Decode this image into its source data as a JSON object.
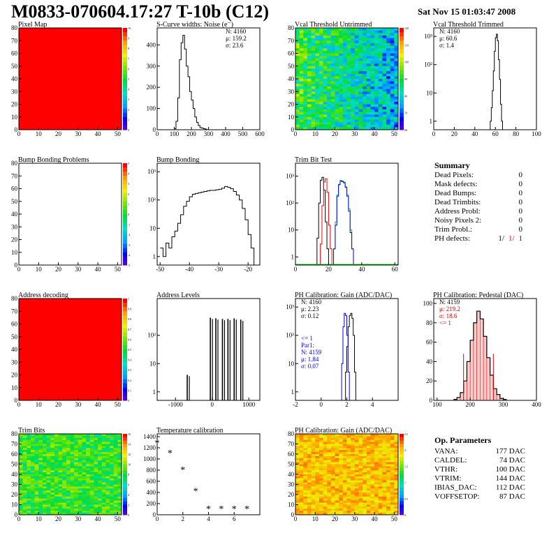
{
  "title": "M0833-070604.17:27 T-10b (C12)",
  "date": "Sat Nov 15 01:03:47 2008",
  "colors": {
    "map_red": "#ff0000",
    "trim_red": "#ff0000",
    "trim_green": "#00cc00",
    "trim_blue": "#0000ff",
    "blue_fit": "#0000ee"
  },
  "summary": {
    "title": "Summary",
    "rows": [
      {
        "label": "Dead Pixels:",
        "value": "0"
      },
      {
        "label": "Mask defects:",
        "value": "0"
      },
      {
        "label": "Dead Bumps:",
        "value": "0"
      },
      {
        "label": "Dead Trimbits:",
        "value": "0"
      },
      {
        "label": "Address Probl:",
        "value": "0"
      },
      {
        "label": "Noisy Pixels 2:",
        "value": "0"
      },
      {
        "label": "Trim Probl.:",
        "value": "0"
      }
    ],
    "ph_label": "PH defects:",
    "ph_values": [
      "1/",
      "1/",
      "1"
    ]
  },
  "op_params": {
    "title": "Op. Parameters",
    "rows": [
      {
        "label": "VANA:",
        "value": "177 DAC"
      },
      {
        "label": "CALDEL:",
        "value": "74 DAC"
      },
      {
        "label": "VTHR:",
        "value": "100 DAC"
      },
      {
        "label": "VTRIM:",
        "value": "144 DAC"
      },
      {
        "label": "IBIAS_DAC:",
        "value": "112 DAC"
      },
      {
        "label": "VOFFSETOP:",
        "value": "87 DAC"
      }
    ]
  },
  "chart_data": [
    {
      "id": "pixel-map",
      "type": "heatmap",
      "title": "Pixel Map",
      "xticks": [
        0,
        10,
        20,
        30,
        40,
        50
      ],
      "yticks": [
        0,
        10,
        20,
        30,
        40,
        50,
        60,
        70,
        80
      ],
      "xlim": [
        0,
        52
      ],
      "ylim": [
        0,
        80
      ],
      "fill": "uniform-red",
      "zscale": [
        "0",
        "1",
        "2",
        "3",
        "4",
        "5",
        "6",
        "7",
        "8",
        "9",
        "10"
      ]
    },
    {
      "id": "scurve",
      "type": "bar",
      "title": "S-Curve widths: Noise (e⁻)",
      "xticks": [
        0,
        100,
        200,
        300,
        400,
        500,
        600
      ],
      "yticks": [
        0,
        100,
        200,
        300,
        400
      ],
      "xlim": [
        0,
        600
      ],
      "ylim": [
        0,
        480
      ],
      "stats": [
        "N: 4160",
        "μ: 159.2",
        "σ: 23.6"
      ],
      "x": [
        90,
        100,
        110,
        120,
        130,
        140,
        150,
        160,
        170,
        180,
        190,
        200,
        210,
        220,
        230,
        240,
        250,
        260,
        270,
        280,
        290
      ],
      "values": [
        0,
        5,
        40,
        150,
        330,
        410,
        445,
        380,
        300,
        250,
        180,
        140,
        100,
        60,
        35,
        20,
        10,
        8,
        5,
        3,
        0
      ]
    },
    {
      "id": "vcal-untrimmed",
      "type": "heatmap",
      "title": "Vcal Threshold Untrimmed",
      "xticks": [
        0,
        10,
        20,
        30,
        40,
        50
      ],
      "yticks": [
        0,
        10,
        20,
        30,
        40,
        50,
        60,
        70,
        80
      ],
      "xlim": [
        0,
        52
      ],
      "ylim": [
        0,
        80
      ],
      "fill": "noise-green-blue",
      "zscale": [
        "60",
        "70",
        "80",
        "90",
        "100",
        "110",
        "120"
      ]
    },
    {
      "id": "vcal-trimmed",
      "type": "line",
      "title": "Vcal Threshold Trimmed",
      "xticks": [
        0,
        20,
        40,
        60,
        80,
        100
      ],
      "ylog": true,
      "ylim": [
        0.5,
        2000
      ],
      "xlim": [
        0,
        100
      ],
      "ytick_labels": [
        "1",
        "10",
        "10²",
        "10³"
      ],
      "stats": [
        "N: 4160",
        "μ: 60.6",
        "σ: 1.4"
      ],
      "x": [
        54,
        55,
        56,
        57,
        58,
        59,
        60,
        61,
        62,
        63,
        64,
        65,
        66,
        67
      ],
      "values": [
        0.5,
        1,
        3,
        12,
        60,
        300,
        900,
        1200,
        700,
        150,
        30,
        4,
        1,
        0.5
      ]
    },
    {
      "id": "bump-problems",
      "type": "heatmap",
      "title": "Bump Bonding Problems",
      "xticks": [
        0,
        10,
        20,
        30,
        40,
        50
      ],
      "yticks": [
        0,
        10,
        20,
        30,
        40,
        50,
        60,
        70,
        80
      ],
      "xlim": [
        0,
        52
      ],
      "ylim": [
        0,
        80
      ],
      "fill": "empty",
      "zscale": [
        "-5",
        "-4",
        "-3",
        "-2",
        "-1",
        "0",
        "1",
        "2",
        "3",
        "4",
        "5"
      ]
    },
    {
      "id": "bump-bonding",
      "type": "line",
      "title": "Bump Bonding",
      "xticks": [
        -50,
        -40,
        -30,
        -20
      ],
      "xlim": [
        -51,
        -16
      ],
      "ylog": true,
      "ylim": [
        0.5,
        2000
      ],
      "ytick_labels": [
        "1",
        "10",
        "10²",
        "10³"
      ],
      "x": [
        -50,
        -49,
        -48,
        -47,
        -46,
        -45,
        -44,
        -43,
        -42,
        -41,
        -40,
        -39,
        -38,
        -37,
        -36,
        -35,
        -34,
        -33,
        -32,
        -31,
        -30,
        -29,
        -28,
        -27,
        -26,
        -25,
        -24,
        -23,
        -22,
        -21,
        -20,
        -19,
        -18
      ],
      "values": [
        2,
        1,
        3,
        2,
        5,
        8,
        15,
        30,
        60,
        90,
        130,
        160,
        170,
        180,
        190,
        200,
        210,
        220,
        220,
        230,
        240,
        260,
        300,
        280,
        250,
        200,
        150,
        100,
        50,
        20,
        6,
        2,
        0.5
      ]
    },
    {
      "id": "trim-bit-test",
      "type": "line",
      "title": "Trim Bit Test",
      "xticks": [
        0,
        20,
        40,
        60
      ],
      "xlim": [
        0,
        62
      ],
      "ylog": true,
      "ylim": [
        0.5,
        3000
      ],
      "ytick_labels": [
        "1",
        "10",
        "10²",
        "10³"
      ],
      "series": [
        {
          "x": [
            12,
            13,
            14,
            15,
            16,
            17,
            18,
            19,
            20
          ],
          "values": [
            0.5,
            5,
            100,
            700,
            900,
            300,
            20,
            2,
            0.5
          ]
        },
        {
          "x": [
            14,
            15,
            16,
            17,
            18,
            19,
            20,
            21,
            22
          ],
          "values": [
            0.5,
            3,
            80,
            600,
            800,
            250,
            15,
            2,
            0.5
          ]
        },
        {
          "x": [
            22,
            23,
            24,
            25,
            26,
            27,
            28,
            29,
            30,
            31,
            32,
            33,
            34,
            35
          ],
          "values": [
            0.5,
            2,
            20,
            200,
            500,
            700,
            650,
            600,
            400,
            200,
            60,
            10,
            2,
            0.5
          ]
        },
        {
          "x": [
            22,
            23,
            24,
            25,
            26,
            27,
            28,
            29,
            30,
            31,
            32,
            33,
            34,
            35
          ],
          "values": [
            0.5,
            2,
            15,
            180,
            480,
            650,
            620,
            560,
            380,
            180,
            50,
            8,
            2,
            0.5
          ]
        }
      ]
    },
    {
      "id": "address-decoding",
      "type": "heatmap",
      "title": "Address decoding",
      "xticks": [
        0,
        10,
        20,
        30,
        40,
        50
      ],
      "yticks": [
        0,
        10,
        20,
        30,
        40,
        50,
        60,
        70,
        80
      ],
      "xlim": [
        0,
        52
      ],
      "ylim": [
        0,
        80
      ],
      "fill": "uniform-red",
      "zscale": [
        "0",
        "0.1",
        "0.2",
        "0.3",
        "0.4",
        "0.5",
        "0.6",
        "0.7",
        "0.8",
        "0.9",
        "1"
      ]
    },
    {
      "id": "address-levels",
      "type": "bar",
      "title": "Address Levels",
      "xticks": [
        -1000,
        0,
        1000
      ],
      "xlim": [
        -1500,
        1300
      ],
      "ylog": true,
      "ylim": [
        0.5,
        2000
      ],
      "ytick_labels": [
        "1",
        "10",
        "10²"
      ],
      "x": [
        -680,
        -50,
        100,
        280,
        430,
        600,
        780
      ],
      "values": [
        4,
        420,
        400,
        380,
        380,
        400,
        360
      ]
    },
    {
      "id": "ph-gain",
      "type": "line",
      "title": "PH Calibration: Gain (ADC/DAC)",
      "xticks": [
        -2,
        0,
        2,
        4
      ],
      "xlim": [
        -2,
        6
      ],
      "ylog": true,
      "ylim": [
        0.5,
        2000
      ],
      "ytick_labels": [
        "1",
        "10",
        "10²",
        "10³"
      ],
      "stats": [
        "N: 4160",
        "μ: 2.23",
        "σ: 0.12"
      ],
      "blue_stats": [
        "<= 1",
        "Par1:",
        "N: 4159",
        "μ: 1.84",
        "σ: 0.07"
      ],
      "series": [
        {
          "x": [
            1.8,
            1.9,
            2.0,
            2.1,
            2.2,
            2.3,
            2.4,
            2.5,
            2.6,
            2.7
          ],
          "values": [
            0.5,
            5,
            40,
            200,
            500,
            600,
            400,
            100,
            5,
            0.5
          ]
        },
        {
          "x": [
            1.5,
            1.6,
            1.7,
            1.8,
            1.9,
            2.0,
            2.1,
            2.2
          ],
          "values": [
            0.5,
            10,
            200,
            600,
            500,
            100,
            5,
            0.5
          ]
        }
      ]
    },
    {
      "id": "ph-pedestal",
      "type": "bar",
      "title": "PH Calibration: Pedestal (DAC)",
      "xticks": [
        100,
        200,
        300,
        400
      ],
      "xlim": [
        90,
        400
      ],
      "ylim": [
        0,
        105
      ],
      "yticks": [
        0,
        20,
        40,
        60,
        80,
        100
      ],
      "stats": [
        "N: 4159"
      ],
      "red_stats": [
        "μ: 219.2",
        "σ: 18.6",
        "<= 1"
      ],
      "x": [
        150,
        160,
        170,
        180,
        190,
        200,
        210,
        220,
        230,
        240,
        250,
        260,
        270,
        280,
        290,
        300
      ],
      "values": [
        1,
        3,
        8,
        20,
        40,
        62,
        80,
        92,
        84,
        66,
        44,
        26,
        12,
        6,
        2,
        1
      ]
    },
    {
      "id": "trim-bits",
      "type": "heatmap",
      "title": "Trim Bits",
      "xticks": [
        0,
        10,
        20,
        30,
        40,
        50
      ],
      "yticks": [
        0,
        10,
        20,
        30,
        40,
        50,
        60,
        70,
        80
      ],
      "xlim": [
        0,
        52
      ],
      "ylim": [
        0,
        80
      ],
      "fill": "noise-green",
      "zscale": [
        "0",
        "2",
        "4",
        "6",
        "8",
        "10",
        "12",
        "14",
        "16"
      ]
    },
    {
      "id": "temperature",
      "type": "scatter",
      "title": "Temperature calibration",
      "xticks": [
        0,
        2,
        4,
        6
      ],
      "yticks": [
        0,
        200,
        400,
        600,
        800,
        1000,
        1200,
        1400
      ],
      "xlim": [
        0,
        8
      ],
      "ylim": [
        0,
        1450
      ],
      "x": [
        0,
        1,
        2,
        3,
        4,
        5,
        6,
        7
      ],
      "values": [
        1280,
        1100,
        800,
        420,
        100,
        100,
        100,
        100
      ]
    },
    {
      "id": "ph-gain-map",
      "type": "heatmap",
      "title": "PH Calibration: Gain (ADC/DAC)",
      "xticks": [
        0,
        10,
        20,
        30,
        40,
        50
      ],
      "yticks": [
        0,
        10,
        20,
        30,
        40,
        50,
        60,
        70,
        80
      ],
      "xlim": [
        0,
        52
      ],
      "ylim": [
        0,
        80
      ],
      "fill": "noise-orange",
      "zscale": [
        "0",
        "0.5",
        "1",
        "1.5",
        "2",
        "2.5"
      ]
    }
  ]
}
